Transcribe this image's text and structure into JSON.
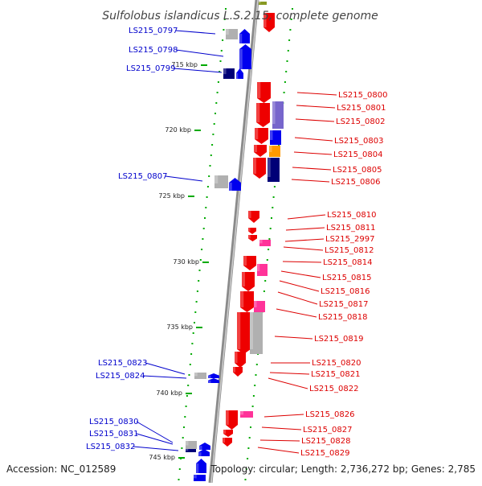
{
  "title": "Sulfolobus islandicus L.S.2.15, complete genome",
  "footer": {
    "accession": "Accession: NC_012589",
    "summary": "Topology: circular; Length: 2,736,272 bp; Genes: 2,785"
  },
  "colors": {
    "background": "#ffffff",
    "backbone": "#8a8a8a",
    "left_label": "#0000cc",
    "right_label": "#dd0000",
    "tick": "#00aa00",
    "forward_gene": "#0000ee",
    "reverse_gene": "#ee0000",
    "pink_gene": "#ff3399",
    "orange_gene": "#ff9900",
    "purple_gene": "#7766cc",
    "navy_gene": "#000077",
    "gray_gene": "#b0b0b0",
    "olive_gene": "#889922"
  },
  "scale_ticks": [
    "715 kbp",
    "720 kbp",
    "725 kbp",
    "730 kbp",
    "735 kbp",
    "740 kbp",
    "745 kbp"
  ],
  "left_labels": [
    "LS215_0797",
    "LS215_0798",
    "LS215_0799",
    "LS215_0807",
    "LS215_0823",
    "LS215_0824",
    "LS215_0830",
    "LS215_0831",
    "LS215_0832"
  ],
  "right_labels": [
    "LS215_0800",
    "LS215_0801",
    "LS215_0802",
    "LS215_0803",
    "LS215_0804",
    "LS215_0805",
    "LS215_0806",
    "LS215_0810",
    "LS215_0811",
    "LS215_2997",
    "LS215_0812",
    "LS215_0814",
    "LS215_0815",
    "LS215_0816",
    "LS215_0817",
    "LS215_0818",
    "LS215_0819",
    "LS215_0820",
    "LS215_0821",
    "LS215_0822",
    "LS215_0826",
    "LS215_0827",
    "LS215_0828",
    "LS215_0829"
  ]
}
